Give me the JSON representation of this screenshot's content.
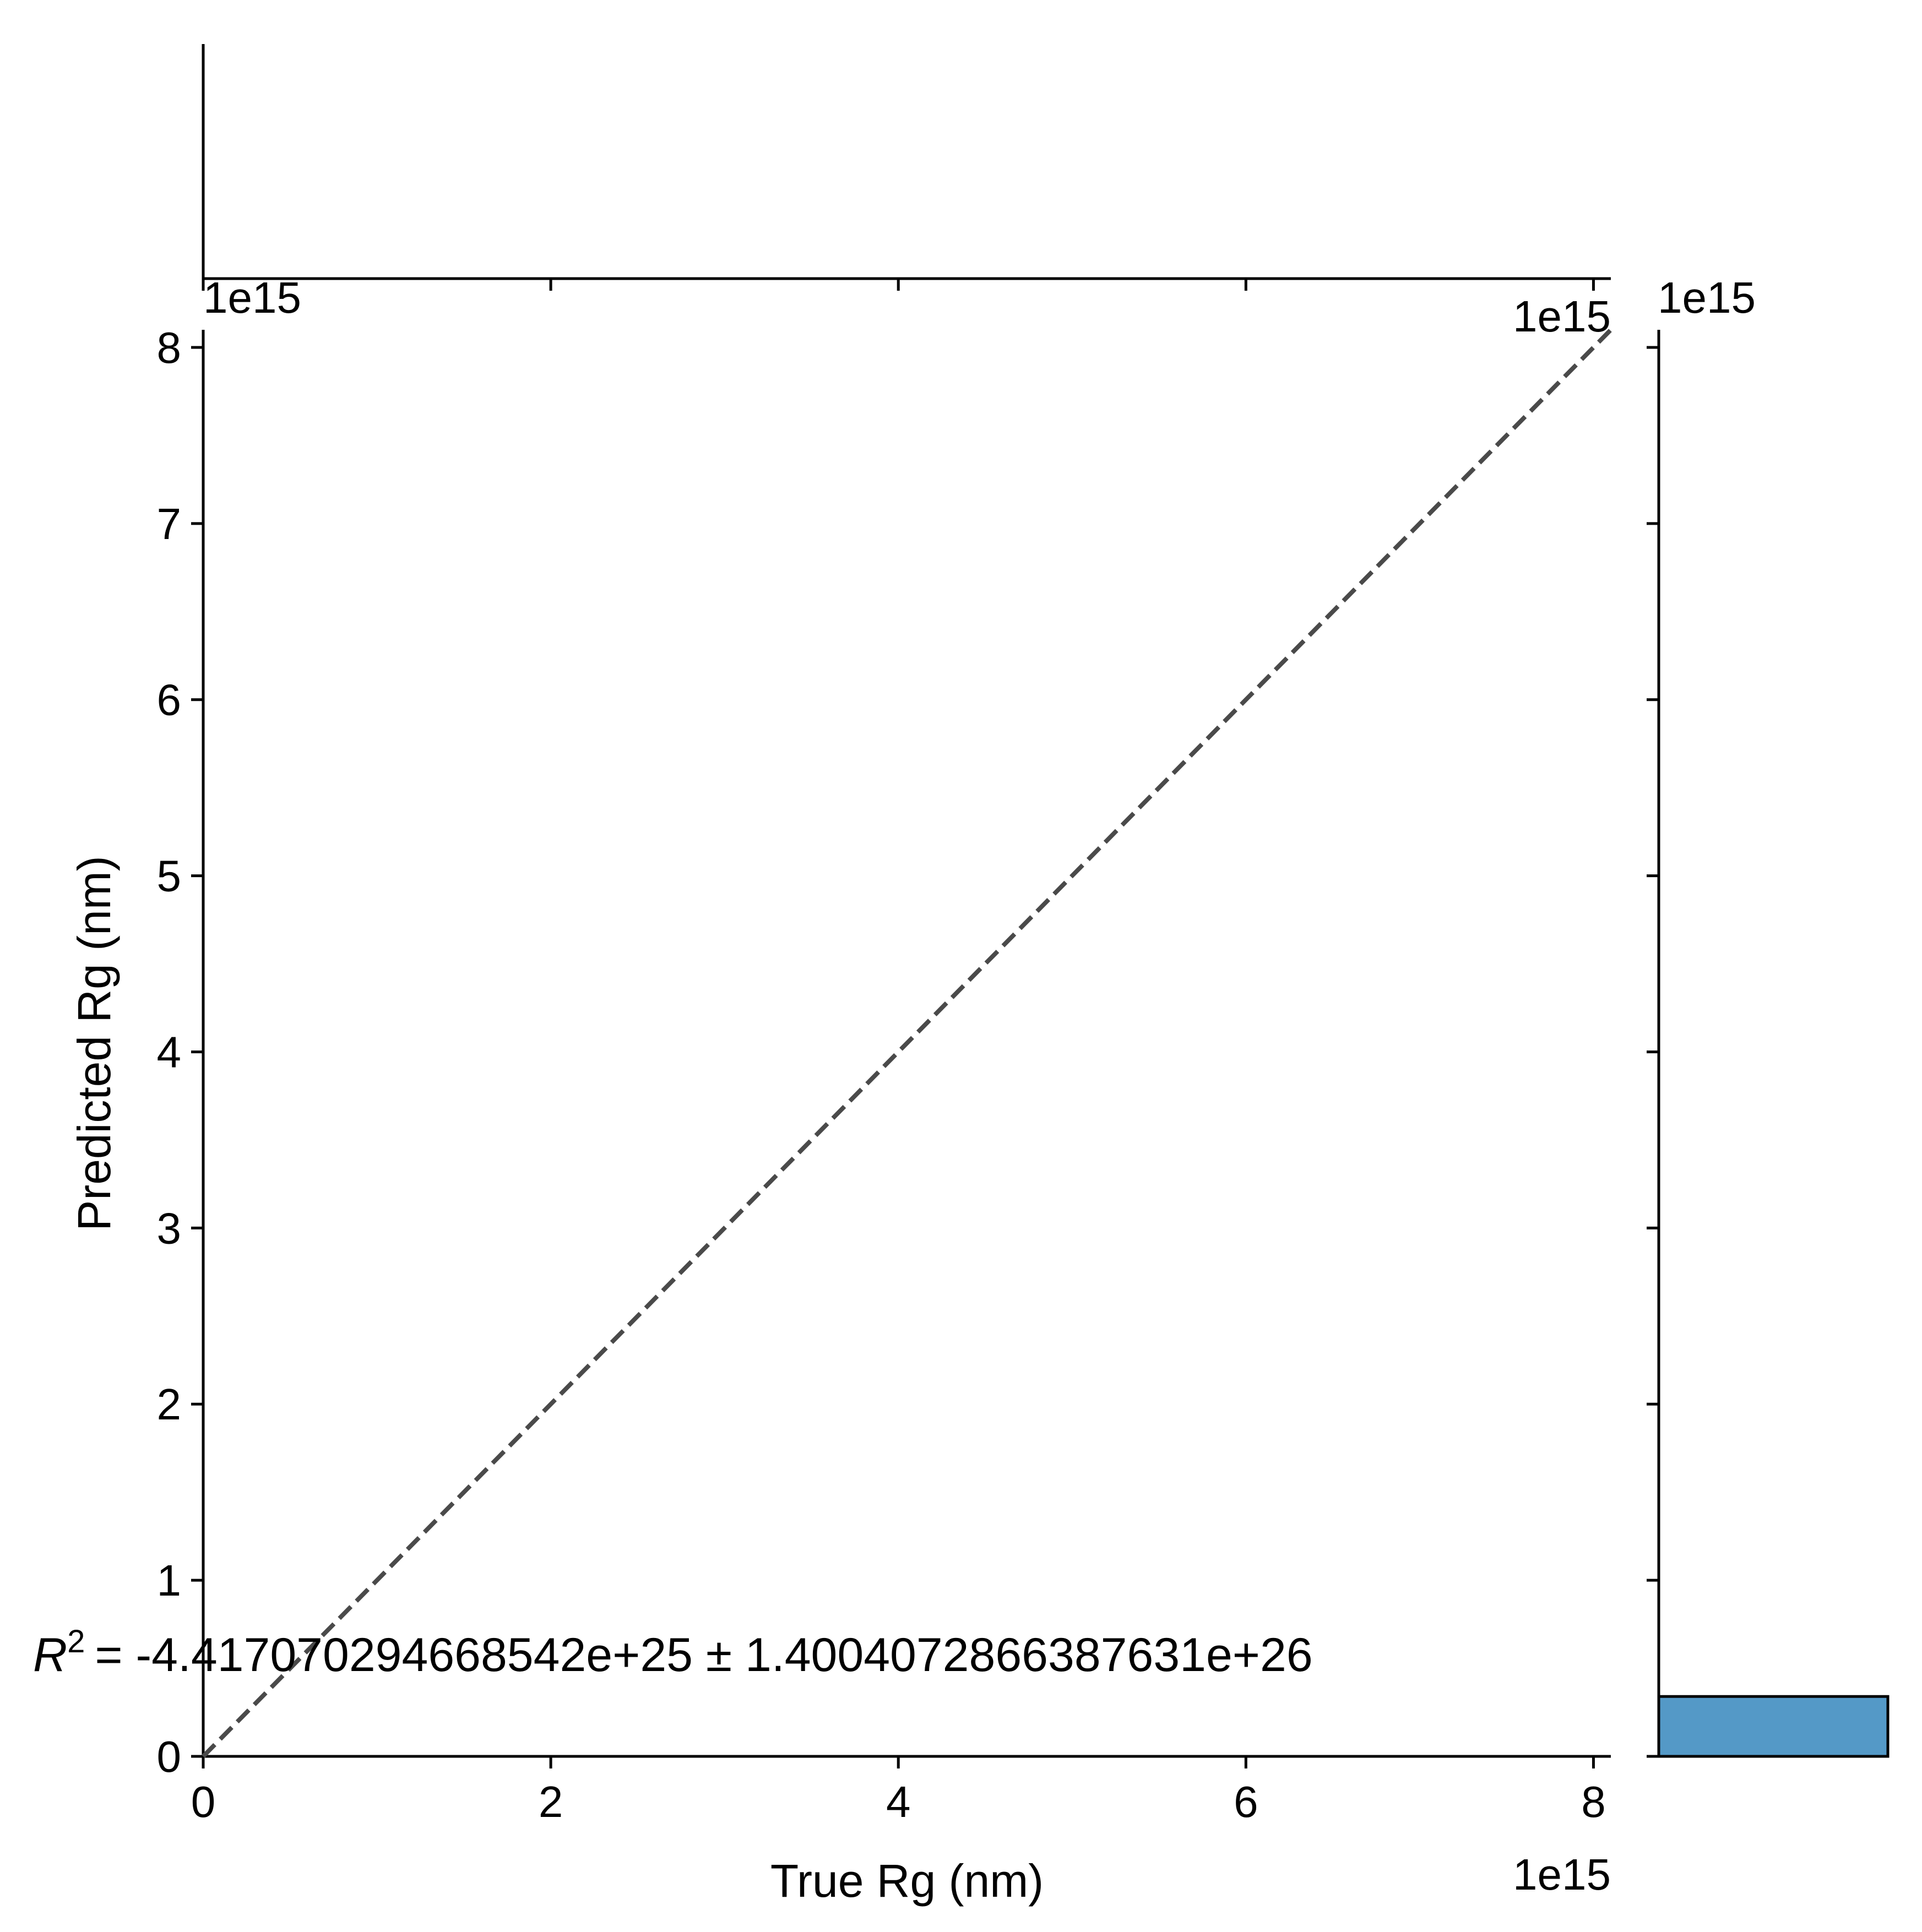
{
  "chart_data": {
    "type": "scatter",
    "title": "",
    "xlabel": "True Rg (nm)",
    "ylabel": "Predicted Rg (nm)",
    "xlim": [
      0,
      8.1
    ],
    "ylim": [
      0,
      8.1
    ],
    "x_offset_text": "1e15",
    "y_offset_text": "1e15",
    "top_marginal_offset_text": "1e15",
    "right_marginal_offset_text": "1e15",
    "x_ticks": [
      "0",
      "2",
      "4",
      "6",
      "8"
    ],
    "y_ticks": [
      "0",
      "1",
      "2",
      "3",
      "4",
      "5",
      "6",
      "7",
      "8"
    ],
    "x_tick_values": [
      0,
      2,
      4,
      6,
      8
    ],
    "y_tick_values": [
      0,
      1,
      2,
      3,
      4,
      5,
      6,
      7,
      8
    ],
    "reference_line": {
      "style": "dashed",
      "color": "#4a4a4a",
      "from": [
        0,
        0
      ],
      "to": [
        8.1,
        8.1
      ]
    },
    "annotation": "= -4.417070294668542e+25 ± 1.4004072866387631e+26",
    "annotation_symbol": "R",
    "annotation_superscript": "2",
    "right_marginal_histogram": {
      "bins": [
        {
          "y_start": 0,
          "y_end": 0.34,
          "count_fraction": 1.0
        }
      ],
      "color": "#5499c7"
    },
    "top_marginal_histogram": {
      "bins": []
    },
    "grid": false,
    "legend": "none"
  }
}
